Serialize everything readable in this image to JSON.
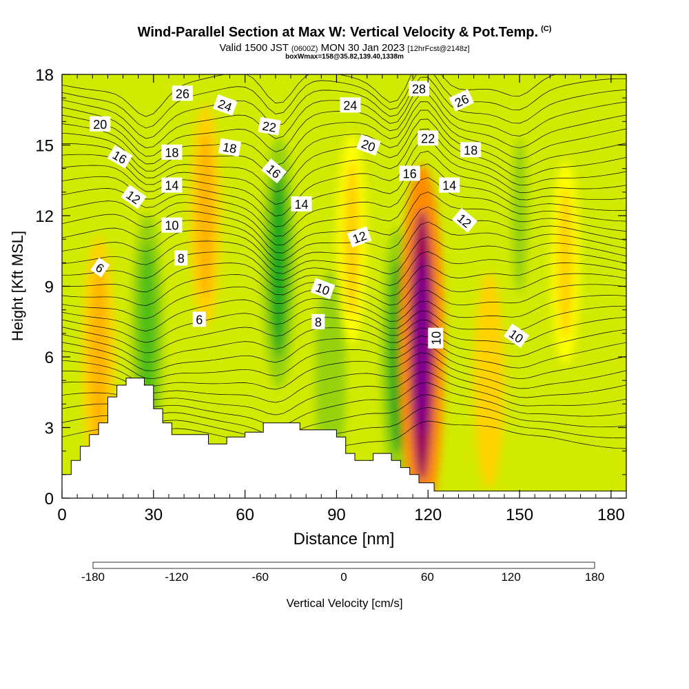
{
  "header": {
    "title": "Wind-Parallel Section at Max W: Vertical Velocity & Pot.Temp.",
    "title_mark": "(C)",
    "valid_prefix": "Valid 1500 JST",
    "valid_utc": "(0600Z)",
    "valid_date": "MON 30 Jan 2023",
    "forecast_info": "[12hrFcst@2148z]",
    "box_info": "boxWmax=158@35.82,139.40,1338m"
  },
  "chart_data": {
    "type": "heatmap",
    "title": "Wind-Parallel Section at Max W: Vertical Velocity & Pot.Temp.",
    "xlabel": "Distance [nm]",
    "ylabel": "Height [Kft MSL]",
    "xlim": [
      0,
      185
    ],
    "ylim": [
      0,
      18
    ],
    "x_ticks": [
      0,
      30,
      60,
      90,
      120,
      150,
      180
    ],
    "y_ticks": [
      0,
      3,
      6,
      9,
      12,
      15,
      18
    ],
    "colorbar": {
      "label": "Vertical Velocity [cm/s]",
      "range": [
        -180,
        180
      ],
      "ticks": [
        -180,
        -120,
        -60,
        0,
        60,
        120,
        180
      ],
      "colors": [
        "#1e1ee6",
        "#1e5af0",
        "#1e96f0",
        "#00e6e6",
        "#00c896",
        "#00b45a",
        "#1eaa1e",
        "#50be14",
        "#96d20a",
        "#d2ea00",
        "#ffff00",
        "#ffd200",
        "#ffb400",
        "#ff8c00",
        "#ff5a00",
        "#f01e00",
        "#d2001e",
        "#a0005a",
        "#780096",
        "#5a0082"
      ]
    },
    "vertical_velocity_features": [
      {
        "x": 12,
        "y_center": 6.0,
        "peak_cm_s": 60
      },
      {
        "x": 28,
        "y_center": 7.0,
        "peak_cm_s": -60
      },
      {
        "x": 47,
        "y_center": 12.0,
        "peak_cm_s": 45
      },
      {
        "x": 71,
        "y_center": 10.0,
        "peak_cm_s": -70
      },
      {
        "x": 88,
        "y_center": 5.0,
        "peak_cm_s": -45
      },
      {
        "x": 95,
        "y_center": 11.0,
        "peak_cm_s": 35
      },
      {
        "x": 110,
        "y_center": 6.0,
        "peak_cm_s": -75
      },
      {
        "x": 118,
        "y_center": 6.5,
        "peak_cm_s": 158
      },
      {
        "x": 140,
        "y_center": 5.0,
        "peak_cm_s": 40
      },
      {
        "x": 150,
        "y_center": 12.0,
        "peak_cm_s": -35
      },
      {
        "x": 165,
        "y_center": 10.0,
        "peak_cm_s": 30
      }
    ],
    "terrain_kft": [
      [
        0,
        1.0
      ],
      [
        3,
        1.6
      ],
      [
        6,
        2.2
      ],
      [
        9,
        2.7
      ],
      [
        12,
        3.2
      ],
      [
        15,
        4.3
      ],
      [
        18,
        4.8
      ],
      [
        21,
        5.1
      ],
      [
        24,
        5.1
      ],
      [
        27,
        4.8
      ],
      [
        30,
        3.8
      ],
      [
        33,
        3.2
      ],
      [
        36,
        2.7
      ],
      [
        42,
        2.7
      ],
      [
        48,
        2.3
      ],
      [
        54,
        2.6
      ],
      [
        60,
        2.8
      ],
      [
        66,
        3.2
      ],
      [
        72,
        3.2
      ],
      [
        78,
        2.9
      ],
      [
        84,
        2.9
      ],
      [
        90,
        2.6
      ],
      [
        93,
        1.9
      ],
      [
        96,
        1.6
      ],
      [
        102,
        1.9
      ],
      [
        108,
        1.6
      ],
      [
        111,
        1.3
      ],
      [
        114,
        1.0
      ],
      [
        117,
        0.65
      ],
      [
        120,
        0.65
      ],
      [
        122,
        0.3
      ],
      [
        185,
        0.3
      ]
    ],
    "pot_temp_labels_c": [
      {
        "text": "26",
        "x": 39.5,
        "y": 17.2,
        "angle": 0
      },
      {
        "text": "24",
        "x": 53.5,
        "y": 16.7,
        "angle": 20
      },
      {
        "text": "24",
        "x": 94.5,
        "y": 16.7,
        "angle": 0
      },
      {
        "text": "28",
        "x": 117,
        "y": 17.4,
        "angle": 0
      },
      {
        "text": "26",
        "x": 131,
        "y": 16.9,
        "angle": -25
      },
      {
        "text": "20",
        "x": 12.5,
        "y": 15.9,
        "angle": 0
      },
      {
        "text": "22",
        "x": 68,
        "y": 15.8,
        "angle": 10
      },
      {
        "text": "20",
        "x": 100.5,
        "y": 15.0,
        "angle": 20
      },
      {
        "text": "22",
        "x": 120,
        "y": 15.3,
        "angle": 0
      },
      {
        "text": "16",
        "x": 19,
        "y": 14.5,
        "angle": 30
      },
      {
        "text": "18",
        "x": 36,
        "y": 14.7,
        "angle": 0
      },
      {
        "text": "18",
        "x": 55,
        "y": 14.9,
        "angle": 10
      },
      {
        "text": "16",
        "x": 69.5,
        "y": 13.9,
        "angle": 40
      },
      {
        "text": "18",
        "x": 134,
        "y": 14.8,
        "angle": 0
      },
      {
        "text": "16",
        "x": 114,
        "y": 13.8,
        "angle": 0
      },
      {
        "text": "14",
        "x": 36,
        "y": 13.3,
        "angle": 0
      },
      {
        "text": "14",
        "x": 127,
        "y": 13.3,
        "angle": 0
      },
      {
        "text": "12",
        "x": 23.5,
        "y": 12.8,
        "angle": 35
      },
      {
        "text": "14",
        "x": 78.5,
        "y": 12.5,
        "angle": 0
      },
      {
        "text": "10",
        "x": 36,
        "y": 11.6,
        "angle": 0
      },
      {
        "text": "12",
        "x": 132,
        "y": 11.8,
        "angle": 40
      },
      {
        "text": "12",
        "x": 97.5,
        "y": 11.1,
        "angle": -20
      },
      {
        "text": "8",
        "x": 39,
        "y": 10.2,
        "angle": 0
      },
      {
        "text": "6",
        "x": 12.5,
        "y": 9.8,
        "angle": 35
      },
      {
        "text": "10",
        "x": 85.5,
        "y": 8.9,
        "angle": 20
      },
      {
        "text": "6",
        "x": 45,
        "y": 7.6,
        "angle": 0
      },
      {
        "text": "8",
        "x": 84,
        "y": 7.5,
        "angle": 0
      },
      {
        "text": "10",
        "x": 122.5,
        "y": 6.8,
        "angle": -90
      },
      {
        "text": "10",
        "x": 149,
        "y": 6.9,
        "angle": 35
      }
    ]
  }
}
